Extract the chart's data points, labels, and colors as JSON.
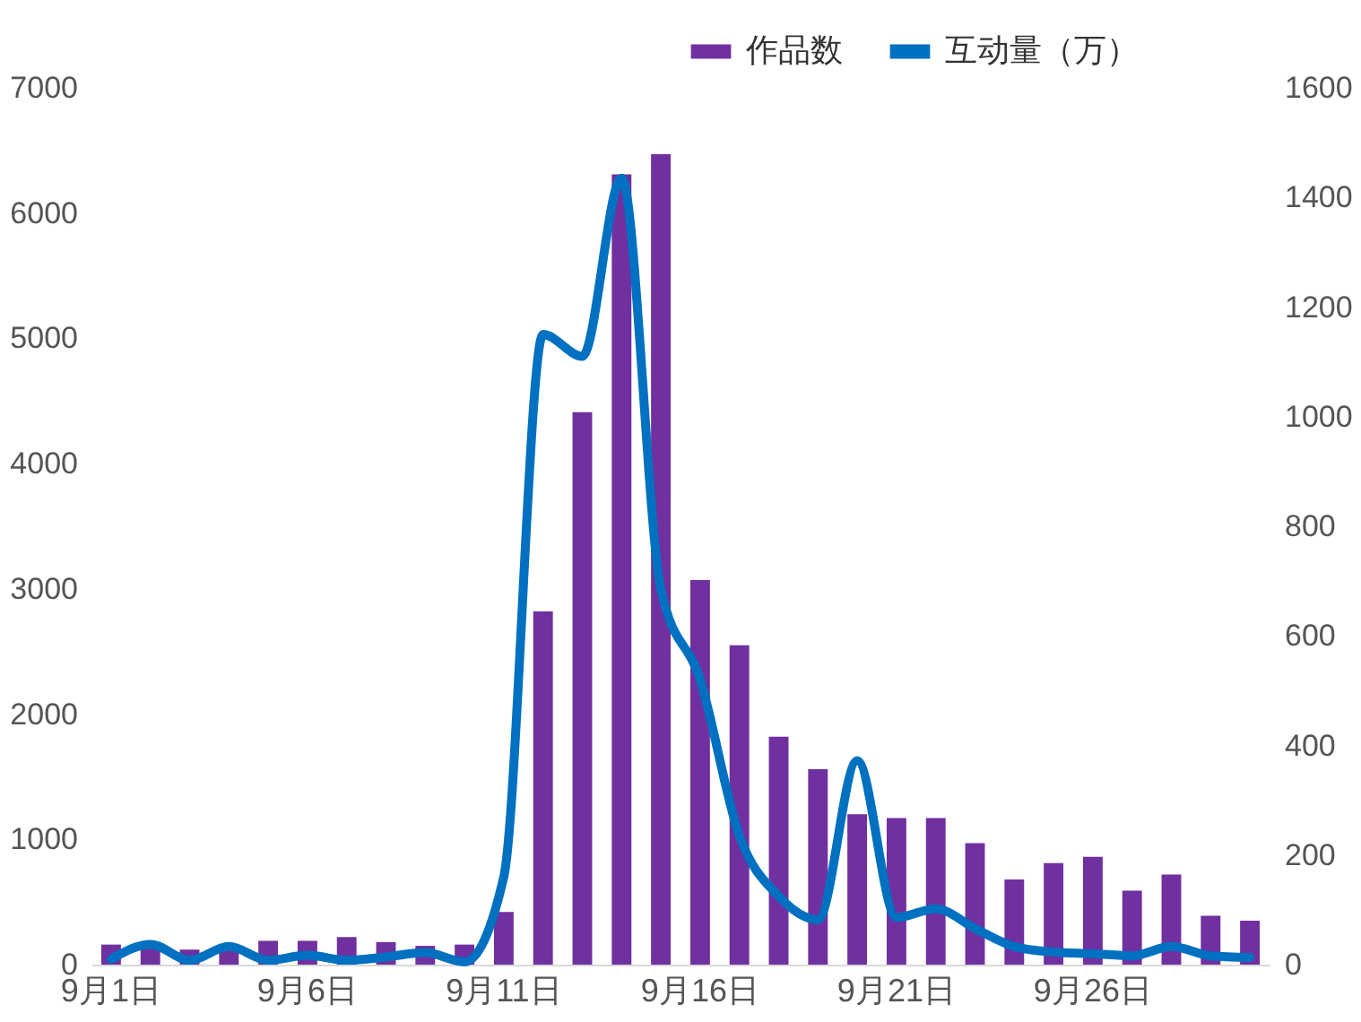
{
  "chart_data": {
    "type": "bar",
    "categories": [
      "9月1日",
      null,
      null,
      null,
      null,
      "9月6日",
      null,
      null,
      null,
      null,
      "9月11日",
      null,
      null,
      null,
      null,
      "9月16日",
      null,
      null,
      null,
      null,
      "9月21日",
      null,
      null,
      null,
      null,
      "9月26日",
      null,
      null,
      null,
      null
    ],
    "series": [
      {
        "name": "作品数",
        "color": "#7030a0",
        "values": [
          160,
          180,
          120,
          130,
          190,
          190,
          220,
          180,
          150,
          160,
          420,
          2820,
          4410,
          6310,
          6470,
          3070,
          2550,
          1820,
          1560,
          1200,
          1170,
          1170,
          970,
          680,
          810,
          860,
          590,
          720,
          390,
          350
        ]
      },
      {
        "name": "互动量（万）",
        "type": "line",
        "axis": "y2",
        "color": "#0070c0",
        "values": [
          10,
          37,
          8,
          33,
          8,
          17,
          8,
          14,
          22,
          5,
          160,
          1150,
          1110,
          1435,
          685,
          520,
          235,
          125,
          82,
          372,
          86,
          102,
          66,
          33,
          23,
          20,
          16,
          33,
          16,
          13
        ]
      }
    ],
    "ylim": [
      0,
      7000
    ],
    "yticks": [
      0,
      1000,
      2000,
      3000,
      4000,
      5000,
      6000,
      7000
    ],
    "y2lim": [
      0,
      1600
    ],
    "y2ticks": [
      0,
      200,
      400,
      600,
      800,
      1000,
      1200,
      1400,
      1600
    ],
    "grid": false,
    "legend": "top right"
  }
}
